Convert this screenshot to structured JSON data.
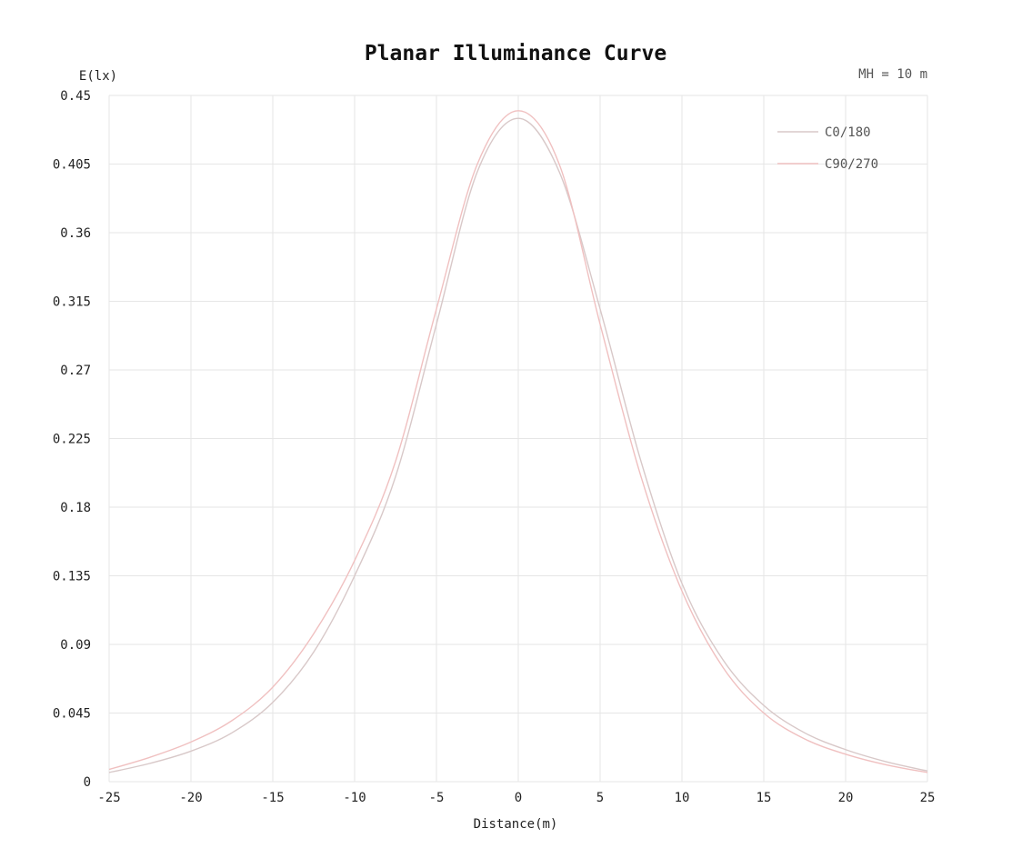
{
  "chart_data": {
    "type": "line",
    "title": "Planar Illuminance Curve",
    "ylabel": "E(lx)",
    "xlabel": "Distance(m)",
    "annotation": "MH = 10 m",
    "xlim": [
      -25,
      25
    ],
    "ylim": [
      0,
      0.45
    ],
    "x_ticks": [
      "-25",
      "-20",
      "-15",
      "-10",
      "-5",
      "0",
      "5",
      "10",
      "15",
      "20",
      "25"
    ],
    "y_ticks": [
      "0",
      "0.045",
      "0.09",
      "0.135",
      "0.18",
      "0.225",
      "0.27",
      "0.315",
      "0.36",
      "0.405",
      "0.45"
    ],
    "grid": true,
    "legend_position": "top-right",
    "x": [
      -25,
      -22.5,
      -20,
      -17.5,
      -15,
      -12.5,
      -10,
      -7.5,
      -5,
      -2.5,
      0,
      2.5,
      5,
      7.5,
      10,
      12.5,
      15,
      17.5,
      20,
      22.5,
      25
    ],
    "series": [
      {
        "name": "C0/180",
        "color": "#d8c8c8",
        "values": [
          0.006,
          0.012,
          0.02,
          0.032,
          0.052,
          0.085,
          0.135,
          0.2,
          0.3,
          0.4,
          0.435,
          0.4,
          0.31,
          0.21,
          0.13,
          0.08,
          0.05,
          0.032,
          0.021,
          0.013,
          0.007
        ]
      },
      {
        "name": "C90/270",
        "color": "#f0c0c0",
        "values": [
          0.008,
          0.016,
          0.026,
          0.04,
          0.062,
          0.097,
          0.145,
          0.21,
          0.31,
          0.405,
          0.44,
          0.405,
          0.3,
          0.2,
          0.125,
          0.075,
          0.045,
          0.028,
          0.018,
          0.011,
          0.006
        ]
      }
    ]
  }
}
